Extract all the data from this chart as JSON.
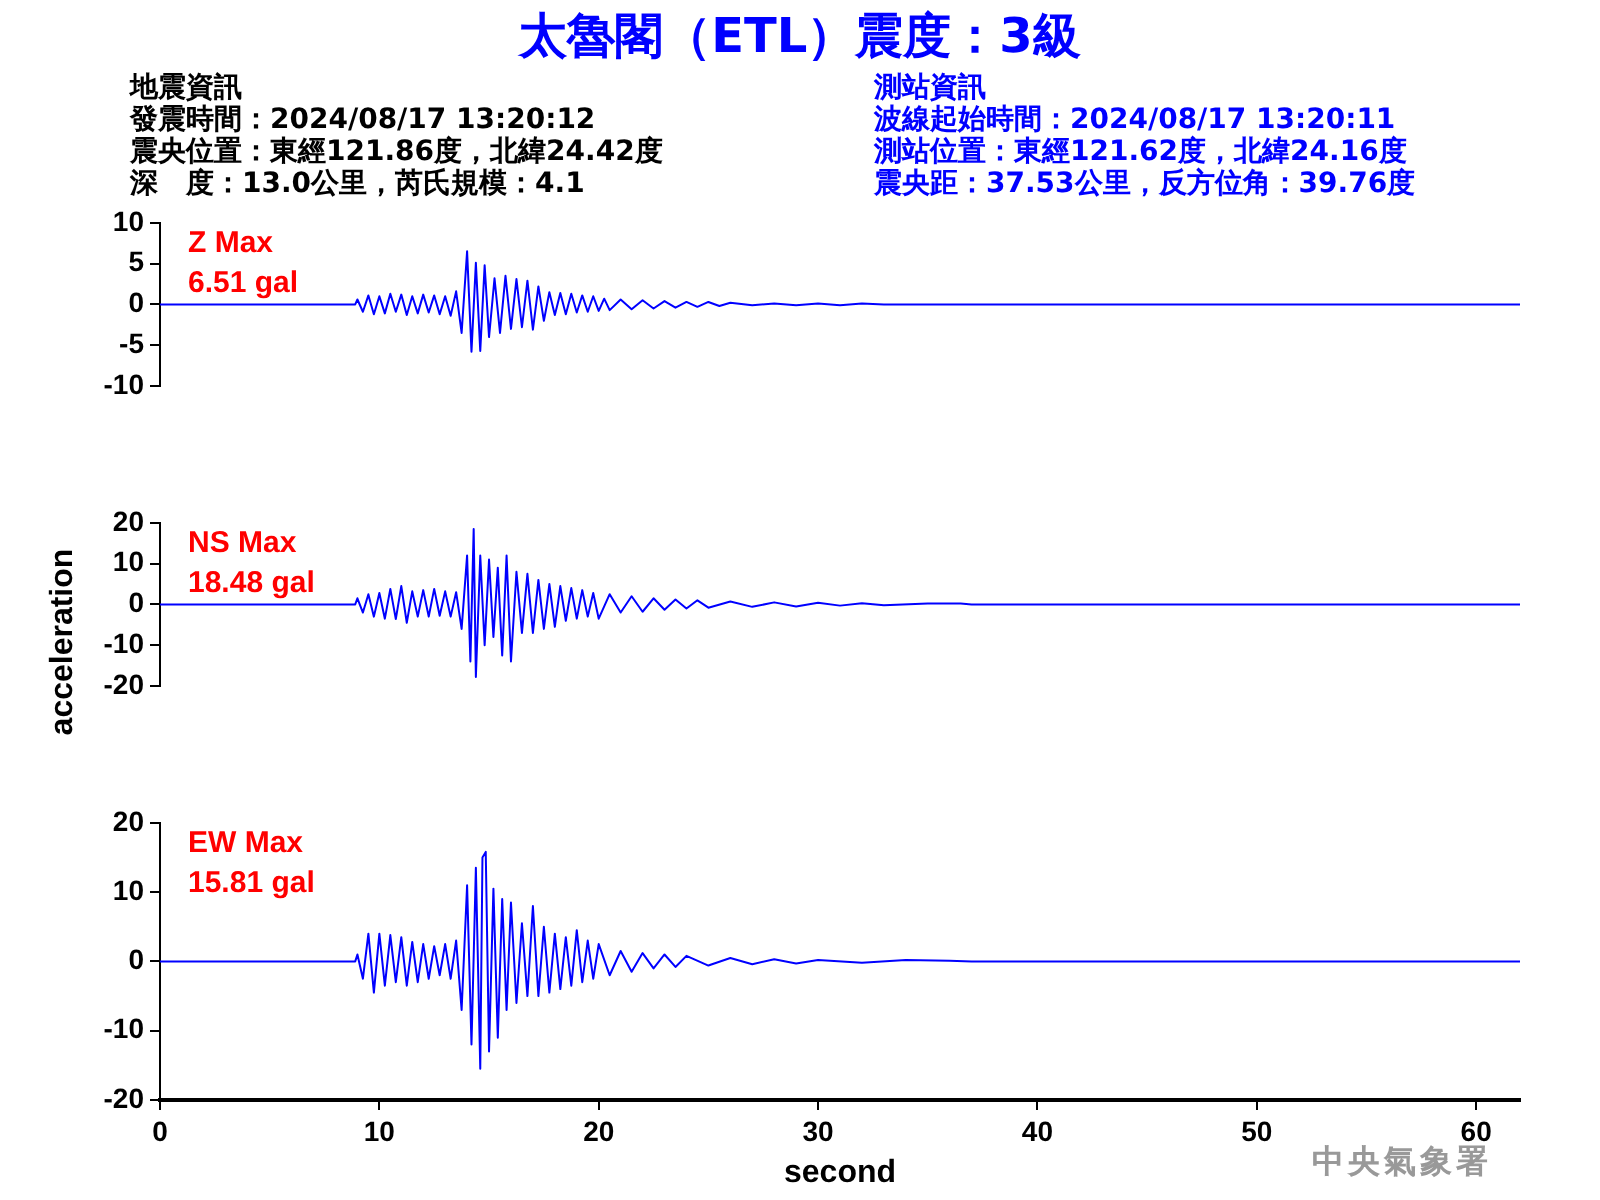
{
  "chart_data": [
    {
      "type": "line",
      "title": "太魯閣（ETL）震度：3級",
      "annotations": [
        "地震資訊",
        "發震時間：2024/08/17 13:20:12",
        "震央位置：東經121.86度，北緯24.42度",
        "深　度：13.0公里，芮氏規模：4.1",
        "測站資訊",
        "波線起始時間：2024/08/17 13:20:11",
        "測站位置：東經121.62度，北緯24.16度",
        "震央距：37.53公里，反方位角：39.76度",
        "Z Max\n6.51 gal"
      ],
      "xticks": [
        0,
        10,
        20,
        30,
        40,
        50,
        60
      ],
      "ylim": [
        -10,
        10
      ],
      "yticks": [
        -10,
        -5,
        0,
        5,
        10
      ],
      "tick_labels": "y",
      "grid": false,
      "series": [
        {
          "color": "#0000ff",
          "x": [
            0,
            8.9,
            9.0,
            9.25,
            9.5,
            9.75,
            10,
            10.25,
            10.5,
            10.75,
            11,
            11.25,
            11.5,
            11.75,
            12,
            12.25,
            12.5,
            12.75,
            13,
            13.25,
            13.5,
            13.75,
            14.0,
            14.2,
            14.4,
            14.6,
            14.8,
            15.0,
            15.25,
            15.5,
            15.75,
            16.0,
            16.25,
            16.5,
            16.75,
            17.0,
            17.25,
            17.5,
            17.75,
            18,
            18.25,
            18.5,
            18.75,
            19,
            19.25,
            19.5,
            19.75,
            20,
            20.25,
            20.5,
            21,
            21.5,
            22,
            22.5,
            23,
            23.5,
            24,
            24.5,
            25,
            25.5,
            26,
            27,
            28,
            29,
            30,
            31,
            32,
            33,
            62
          ],
          "values": [
            0,
            0,
            0.6,
            -0.9,
            1.1,
            -1.2,
            1.0,
            -1.1,
            1.3,
            -0.9,
            1.2,
            -1.3,
            1.0,
            -1.1,
            1.2,
            -1.0,
            1.1,
            -1.2,
            1.0,
            -1.4,
            1.6,
            -3.5,
            6.5,
            -5.8,
            5.1,
            -5.7,
            4.8,
            -4.0,
            3.2,
            -3.5,
            3.5,
            -3.0,
            3.1,
            -2.8,
            2.9,
            -3.1,
            2.2,
            -2.0,
            1.5,
            -1.3,
            1.4,
            -1.2,
            1.3,
            -1.0,
            1.1,
            -0.9,
            1.0,
            -0.8,
            0.7,
            -0.7,
            0.6,
            -0.6,
            0.5,
            -0.5,
            0.4,
            -0.4,
            0.3,
            -0.3,
            0.3,
            -0.2,
            0.2,
            -0.1,
            0.1,
            -0.1,
            0.1,
            -0.1,
            0.1,
            0,
            0
          ]
        }
      ]
    },
    {
      "type": "line",
      "ylabel": "acceleration",
      "annotations": [
        "NS Max\n18.48 gal"
      ],
      "xticks": [
        0,
        10,
        20,
        30,
        40,
        50,
        60
      ],
      "ylim": [
        -20,
        20
      ],
      "yticks": [
        -20,
        -10,
        0,
        10,
        20
      ],
      "tick_labels": "y",
      "grid": false,
      "series": [
        {
          "color": "#0000ff",
          "x": [
            0,
            8.9,
            9.0,
            9.25,
            9.5,
            9.75,
            10,
            10.25,
            10.5,
            10.75,
            11,
            11.25,
            11.5,
            11.75,
            12,
            12.25,
            12.5,
            12.75,
            13,
            13.25,
            13.5,
            13.75,
            14.0,
            14.15,
            14.3,
            14.4,
            14.6,
            14.8,
            15.0,
            15.2,
            15.4,
            15.6,
            15.8,
            16.0,
            16.25,
            16.5,
            16.75,
            17,
            17.25,
            17.5,
            17.75,
            18,
            18.25,
            18.5,
            18.75,
            19,
            19.25,
            19.5,
            19.75,
            20,
            20.5,
            21,
            21.5,
            22,
            22.5,
            23,
            23.5,
            24,
            24.5,
            25,
            26,
            27,
            28,
            29,
            30,
            31,
            32,
            33,
            35,
            36.5,
            37,
            62
          ],
          "values": [
            0,
            0,
            1.5,
            -2.0,
            2.5,
            -3.0,
            2.8,
            -3.5,
            3.8,
            -3.6,
            4.5,
            -4.5,
            3.2,
            -3.0,
            3.5,
            -3.0,
            3.8,
            -2.8,
            3.2,
            -3.0,
            3.0,
            -6.0,
            12.0,
            -14.0,
            18.5,
            -17.8,
            12.0,
            -10.0,
            11.0,
            -8.0,
            9.0,
            -12.5,
            12.0,
            -14.0,
            8.0,
            -7.0,
            7.5,
            -7.0,
            6.0,
            -6.0,
            5.0,
            -5.5,
            4.5,
            -4.0,
            4.0,
            -3.5,
            3.5,
            -3.0,
            2.8,
            -3.5,
            2.5,
            -2.0,
            2.0,
            -1.8,
            1.5,
            -1.3,
            1.2,
            -1.0,
            1.0,
            -0.8,
            0.7,
            -0.6,
            0.5,
            -0.5,
            0.4,
            -0.3,
            0.3,
            -0.2,
            0.2,
            0.2,
            0,
            0
          ]
        }
      ]
    },
    {
      "type": "line",
      "xlabel": "second",
      "annotations": [
        "中央氣象署",
        "EW Max\n15.81 gal"
      ],
      "xlim": [
        0,
        62
      ],
      "xticks": [
        0,
        10,
        20,
        30,
        40,
        50,
        60
      ],
      "ylim": [
        -20,
        20
      ],
      "yticks": [
        -20,
        -10,
        0,
        10,
        20
      ],
      "grid": false,
      "series": [
        {
          "color": "#0000ff",
          "x": [
            0,
            8.9,
            9.0,
            9.25,
            9.5,
            9.75,
            10,
            10.25,
            10.5,
            10.75,
            11,
            11.25,
            11.5,
            11.75,
            12,
            12.25,
            12.5,
            12.75,
            13,
            13.25,
            13.5,
            13.75,
            14.0,
            14.2,
            14.4,
            14.6,
            14.7,
            14.85,
            15.0,
            15.2,
            15.4,
            15.6,
            15.8,
            16.0,
            16.25,
            16.5,
            16.75,
            17,
            17.25,
            17.5,
            17.75,
            18,
            18.25,
            18.5,
            18.75,
            19,
            19.25,
            19.5,
            19.75,
            20,
            20.5,
            21,
            21.5,
            22,
            22.5,
            23,
            23.5,
            24,
            25,
            26,
            27,
            28,
            29,
            30,
            32,
            34,
            36,
            37,
            62
          ],
          "values": [
            0,
            0,
            1.0,
            -2.5,
            4.0,
            -4.5,
            4.0,
            -3.5,
            3.8,
            -3.0,
            3.5,
            -3.5,
            2.8,
            -3.0,
            2.5,
            -2.5,
            2.2,
            -2.0,
            2.5,
            -2.5,
            3.0,
            -7.0,
            11.0,
            -12.0,
            13.5,
            -15.5,
            15.0,
            15.8,
            -13.0,
            10.5,
            -11.0,
            9.0,
            -7.0,
            8.5,
            -6.0,
            5.5,
            -5.0,
            8.0,
            -5.0,
            5.0,
            -4.5,
            4.0,
            -4.0,
            3.5,
            -3.5,
            4.5,
            -3.0,
            3.0,
            -2.5,
            2.5,
            -2.0,
            1.5,
            -1.5,
            1.2,
            -1.0,
            1.0,
            -0.8,
            0.8,
            -0.6,
            0.5,
            -0.4,
            0.3,
            -0.3,
            0.2,
            -0.2,
            0.2,
            0.1,
            0,
            0
          ]
        }
      ]
    }
  ]
}
